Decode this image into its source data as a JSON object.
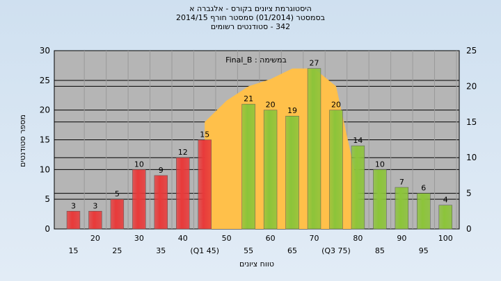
{
  "chart_data": {
    "type": "bar",
    "title": "היסטוגרמת ציונים בקורס - אלגברה א",
    "subtitle": "בסמסטר  (01/2014)  סמסטר חורף 2014/15",
    "subtitle2": "342 - סטודנטים רשומים",
    "xlabel": "טווח ציונים",
    "ylabel": "מספר סטודנטים",
    "ylim": [
      0,
      30
    ],
    "y2lim": [
      0,
      25
    ],
    "yticks": [
      0,
      5,
      10,
      15,
      20,
      25,
      30
    ],
    "y2ticks": [
      0,
      5,
      10,
      15,
      20,
      25
    ],
    "categories": [
      "15",
      "20",
      "25",
      "30",
      "35",
      "40",
      "(Q1 45)",
      "50",
      "55",
      "60",
      "65",
      "70",
      "(Q3 75)",
      "80",
      "85",
      "90",
      "95",
      "100"
    ],
    "values": [
      3,
      3,
      5,
      10,
      9,
      12,
      15,
      null,
      21,
      20,
      19,
      27,
      20,
      14,
      10,
      7,
      6,
      4
    ],
    "bar_colors": [
      "#e83a3a",
      "#e83a3a",
      "#e83a3a",
      "#e83a3a",
      "#e83a3a",
      "#e83a3a",
      "#e83a3a",
      null,
      "#8cc43a",
      "#8cc43a",
      "#8cc43a",
      "#8cc43a",
      "#8cc43a",
      "#8cc43a",
      "#8cc43a",
      "#8cc43a",
      "#8cc43a",
      "#8cc43a"
    ],
    "area": {
      "name": "במשימה : Final_B",
      "color": "#ffc04a",
      "x": [
        "(Q1 45)",
        "50",
        "55",
        "60",
        "65",
        "70",
        "(Q3 75)",
        "80"
      ],
      "values": [
        15,
        18,
        20,
        21,
        22.5,
        22.5,
        20,
        6
      ]
    },
    "grid": true,
    "legend_position": "top-center"
  }
}
